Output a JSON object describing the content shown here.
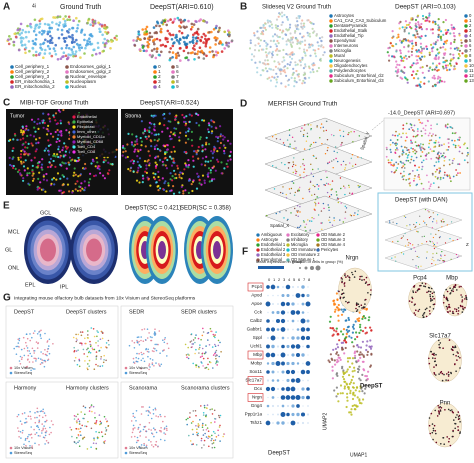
{
  "panels": {
    "a": {
      "label": "A",
      "prefix": "4i",
      "left_title": "Ground Truth",
      "right_title": "DeepST(ARI=0.610)",
      "legend": [
        "Cell_periphery_1",
        "Cell_periphery_2",
        "Cell_periphery_3",
        "ER_mitochondria_1",
        "ER_mitochondria_2",
        "Endosomes_golgi_1",
        "Endosomes_golgi_2",
        "Nuclear_envelope",
        "Nucleoplasm",
        "Nucleus"
      ],
      "clusters": [
        "0",
        "1",
        "2",
        "3",
        "4",
        "5",
        "6",
        "7",
        "8",
        "9"
      ]
    },
    "b": {
      "label": "B",
      "left_title": "Slideseq V2 Ground Truth",
      "right_title": "DeepST (ARI=0.103)",
      "legend": [
        "Astrocytes",
        "CA1_CA2_CA3_Subiculum",
        "DentatePyramids",
        "Endothelial_Stalk",
        "Endothelial_Tip",
        "Ependymal",
        "Interneurons",
        "Microglia",
        "Mural",
        "Neurogenesis",
        "Oligodendrocytes",
        "Polydendrocytes",
        "Subiculum_Entorhinal_cl2",
        "Subiculum_Entorhinal_cl3"
      ],
      "clusters": [
        "0",
        "1",
        "2",
        "3",
        "4",
        "5",
        "6",
        "7",
        "8",
        "9",
        "10",
        "11",
        "12",
        "13"
      ]
    },
    "c": {
      "label": "C",
      "left_title": "MIBI-TOF  Ground Truth",
      "right_title": "DeepST(ARI=0.524)",
      "left_tag": "Tumor",
      "right_tag": "Stroma",
      "legend": [
        "Endothelial",
        "Epithelial",
        "Fibroblast",
        "Imm_other",
        "Myeloid_CD11c",
        "Myeloid_CD68",
        "Tcell_CD4",
        "Tcell_CD8"
      ]
    },
    "d": {
      "label": "D",
      "left_title": "MERFISH  Ground Truth",
      "right_title": "-14.0_DeepST (ARI=0.697)",
      "bottom_title": "DeepST (with DAN)",
      "axis_x": "Spatial_X",
      "axis_y": "Spatial_Y",
      "axis_z": "Z",
      "legend": [
        "Ambiguous",
        "Astrocyte",
        "Endothelial 1",
        "Endothelial 2",
        "Endothelial 3",
        "Ependymal",
        "Excitatory",
        "Inhibitory",
        "Microglia",
        "OD Immature 1",
        "OD Immature 2",
        "OD Mature 1",
        "OD Mature 2",
        "OD Mature 3",
        "OD Mature 4",
        "Pericytes"
      ]
    },
    "e": {
      "label": "E",
      "layers": [
        "GCL",
        "RMS",
        "MCL",
        "GL",
        "ONL",
        "EPL",
        "IPL"
      ],
      "mid_title": "DeepST(SC = 0.421)",
      "right_title": "SEDR(SC = 0.358)"
    },
    "f": {
      "label": "F",
      "mean_legend": "Mean expression in group",
      "frac_legend": "Fraction of cells in group (%)",
      "genes": [
        "Pcp4",
        "Apod",
        "Apoe",
        "Cck",
        "Calb2",
        "Gabbr1",
        "Sppl",
        "Uchl1",
        "Mbp",
        "Mobp",
        "Sox11",
        "Slc17a7",
        "Dcx",
        "Nrgn",
        "Gng4",
        "Ppp1r1a",
        "Tshz1"
      ],
      "clusters": [
        "0",
        "1",
        "2",
        "3",
        "4",
        "5",
        "6",
        "7",
        "8"
      ],
      "x_label": "DeepST",
      "umap_label": "DeepST",
      "umap_x": "UMAP1",
      "umap_y": "UMAP2",
      "maps": [
        "Nrgn",
        "Pcp4",
        "Mbp",
        "Slc17a7",
        "Pnn"
      ]
    },
    "g": {
      "label": "G",
      "title": "Integrating mouse olfactory bulb datasets from 10x Visium and StereoSeq platforms",
      "sub": [
        {
          "left": "DeepST",
          "right": "DeepST clusters"
        },
        {
          "left": "SEDR",
          "right": "SEDR clusters"
        },
        {
          "left": "Harmony",
          "right": "Harmony clusters"
        },
        {
          "left": "Scanorama",
          "right": "Scanorama clusters"
        }
      ],
      "batch": [
        "10x Visium",
        "StereoSeq"
      ]
    }
  }
}
